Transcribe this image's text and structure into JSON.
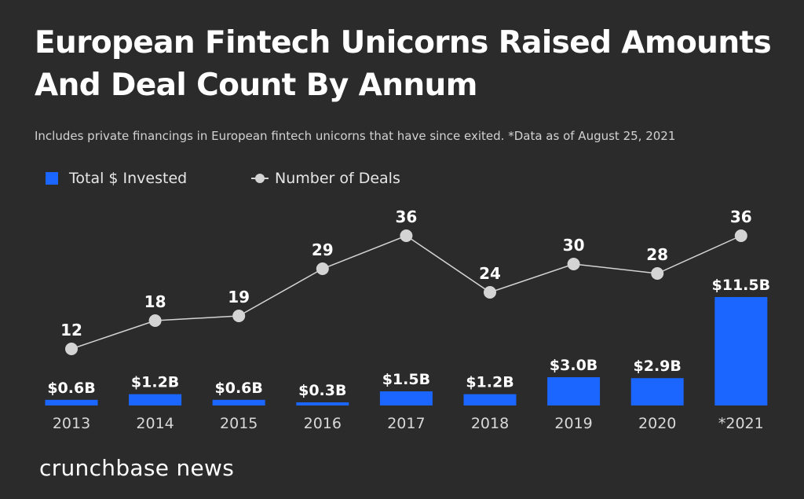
{
  "title": "European Fintech Unicorns Raised Amounts And Deal Count By Annum",
  "subtitle": "Includes private financings in European fintech unicorns that have since exited. *Data as of August 25, 2021",
  "legend": {
    "bars_label": "Total $ Invested",
    "line_label": "Number of Deals"
  },
  "brand": "crunchbase news",
  "colors": {
    "background": "#2b2b2b",
    "bar": "#1a66ff",
    "line": "#d4d4d4",
    "text": "#ffffff",
    "axis_text": "#d8d8d8"
  },
  "chart_data": {
    "type": "bar",
    "categories": [
      "2013",
      "2014",
      "2015",
      "2016",
      "2017",
      "2018",
      "2019",
      "2020",
      "*2021"
    ],
    "series": [
      {
        "name": "Total $ Invested",
        "type": "bar",
        "unit": "$B",
        "values": [
          0.6,
          1.2,
          0.6,
          0.3,
          1.5,
          1.2,
          3.0,
          2.9,
          11.5
        ],
        "labels": [
          "$0.6B",
          "$1.2B",
          "$0.6B",
          "$0.3B",
          "$1.5B",
          "$1.2B",
          "$3.0B",
          "$2.9B",
          "$11.5B"
        ]
      },
      {
        "name": "Number of Deals",
        "type": "line",
        "values": [
          12,
          18,
          19,
          29,
          36,
          24,
          30,
          28,
          36
        ],
        "labels": [
          "12",
          "18",
          "19",
          "29",
          "36",
          "24",
          "30",
          "28",
          "36"
        ]
      }
    ],
    "grid": false,
    "legend_position": "top-left"
  }
}
